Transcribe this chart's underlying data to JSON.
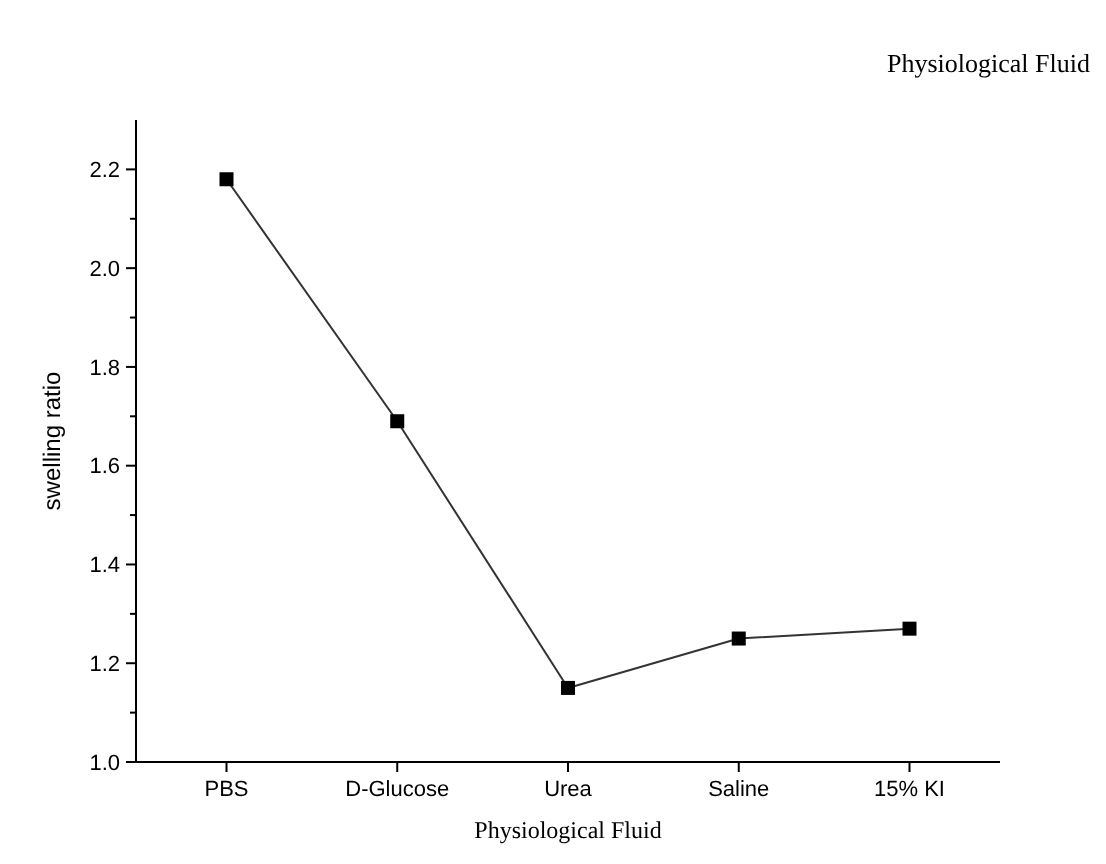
{
  "chart_data": {
    "type": "line",
    "title": "Physiological Fluid",
    "xlabel": "Physiological Fluid",
    "ylabel": "swelling ratio",
    "categories": [
      "PBS",
      "D-Glucose",
      "Urea",
      "Saline",
      "15% KI"
    ],
    "series": [
      {
        "color": "#000000",
        "values": [
          2.18,
          1.69,
          1.15,
          1.25,
          1.27
        ]
      }
    ],
    "ylim": [
      1.0,
      2.3
    ],
    "yticks": [
      {
        "value": 1,
        "label": "1.0"
      },
      1.2,
      1.4,
      1.6,
      1.8,
      {
        "value": 2,
        "label": "2.0"
      },
      2.2
    ],
    "marker": "square",
    "line_style": "solid",
    "grid": false
  }
}
